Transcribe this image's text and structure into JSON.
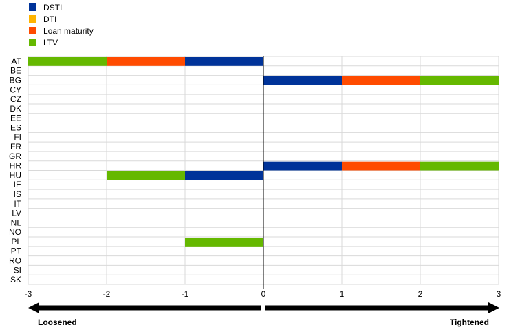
{
  "chart_data": {
    "type": "bar",
    "orientation": "horizontal",
    "stacked": true,
    "categories": [
      "AT",
      "BE",
      "BG",
      "CY",
      "CZ",
      "DK",
      "EE",
      "ES",
      "FI",
      "FR",
      "GR",
      "HR",
      "HU",
      "IE",
      "IS",
      "IT",
      "LV",
      "NL",
      "NO",
      "PL",
      "PT",
      "RO",
      "SI",
      "SK"
    ],
    "series": [
      {
        "name": "DSTI",
        "color": "#003399",
        "values": [
          -1,
          0,
          1,
          0,
          0,
          0,
          0,
          0,
          0,
          0,
          0,
          1,
          -1,
          0,
          0,
          0,
          0,
          0,
          0,
          0,
          0,
          0,
          0,
          0
        ]
      },
      {
        "name": "DTI",
        "color": "#FFB400",
        "values": [
          0,
          0,
          0,
          0,
          0,
          0,
          0,
          0,
          0,
          0,
          0,
          0,
          0,
          0,
          0,
          0,
          0,
          0,
          0,
          0,
          0,
          0,
          0,
          0
        ]
      },
      {
        "name": "Loan maturity",
        "color": "#FF4B00",
        "values": [
          -1,
          0,
          1,
          0,
          0,
          0,
          0,
          0,
          0,
          0,
          0,
          1,
          0,
          0,
          0,
          0,
          0,
          0,
          0,
          0,
          0,
          0,
          0,
          0
        ]
      },
      {
        "name": "LTV",
        "color": "#65B800",
        "values": [
          -1,
          0,
          1,
          0,
          0,
          0,
          0,
          0,
          0,
          0,
          0,
          1,
          -1,
          0,
          0,
          0,
          0,
          0,
          0,
          -1,
          0,
          0,
          0,
          0
        ]
      }
    ],
    "xlim": [
      -3,
      3
    ],
    "xticks": [
      -3,
      -2,
      -1,
      0,
      1,
      2,
      3
    ],
    "grid": true,
    "legend_position": "top-left",
    "direction_labels": {
      "left": "Loosened",
      "right": "Tightened"
    }
  }
}
